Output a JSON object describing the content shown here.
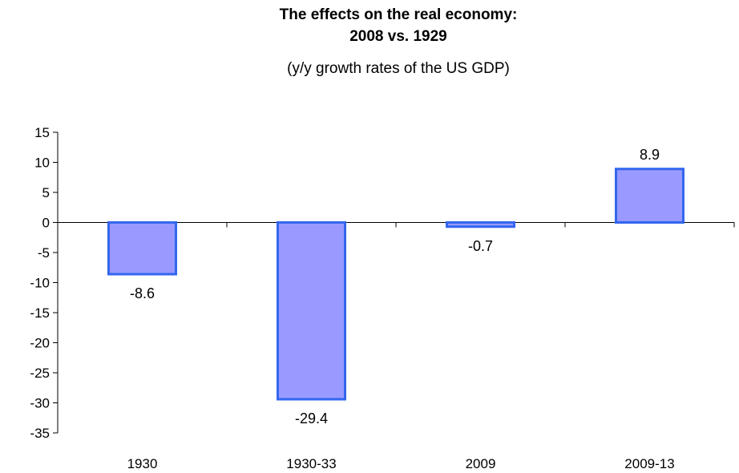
{
  "chart_data": {
    "type": "bar",
    "title_line1": "The effects on the real economy:",
    "title_line2": "2008 vs. 1929",
    "subtitle": "(y/y  growth rates of the US GDP)",
    "xlabel": "",
    "ylabel": "",
    "categories": [
      "1930",
      "1930-33",
      "2009",
      "2009-13"
    ],
    "values": [
      -8.6,
      -29.4,
      -0.7,
      8.9
    ],
    "data_labels": [
      "-8.6",
      "-29.4",
      "-0.7",
      "8.9"
    ],
    "ylim": [
      -35,
      15
    ],
    "yticks": [
      15,
      10,
      5,
      0,
      -5,
      -10,
      -15,
      -20,
      -25,
      -30,
      -35
    ],
    "ytick_labels": [
      "15",
      "10",
      "5",
      "0",
      "-5",
      "-10",
      "-15",
      "-20",
      "-25",
      "-30",
      "-35"
    ],
    "grid": false,
    "legend": "none",
    "colors": {
      "bar_fill": "#9999ff",
      "bar_stroke": "#3366ee",
      "axis": "#000000"
    }
  }
}
